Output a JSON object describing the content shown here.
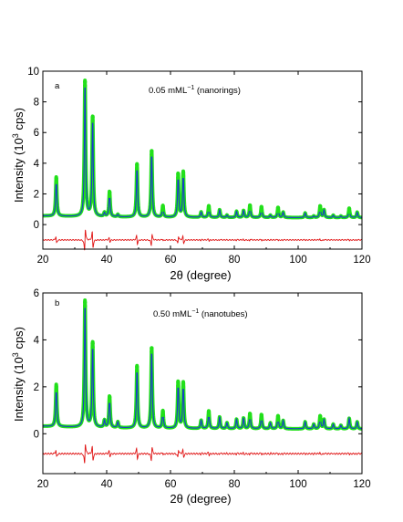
{
  "chart_data": [
    {
      "type": "line",
      "panel_label": "a",
      "annotation": "0.05 mML",
      "annotation_sup": "−1",
      "annotation_tail": " (nanorings)",
      "xlabel_pre": "2",
      "xlabel_theta": "θ",
      "xlabel_post": " (degree)",
      "ylabel_pre": "Intensity (10",
      "ylabel_sup": "3",
      "ylabel_post": " cps)",
      "xlim": [
        20,
        120
      ],
      "ylim": [
        -1.6,
        10
      ],
      "xticks": [
        20,
        40,
        60,
        80,
        100,
        120
      ],
      "yticks": [
        0,
        2,
        4,
        6,
        8,
        10
      ],
      "baseline": 0.45,
      "difference_offset": -1.0,
      "peaks": [
        {
          "x": 24.2,
          "y": 3.0
        },
        {
          "x": 33.2,
          "y": 9.3
        },
        {
          "x": 35.6,
          "y": 7.0
        },
        {
          "x": 39.3,
          "y": 0.7
        },
        {
          "x": 40.9,
          "y": 2.1
        },
        {
          "x": 43.5,
          "y": 0.6
        },
        {
          "x": 49.5,
          "y": 3.9
        },
        {
          "x": 54.1,
          "y": 4.8
        },
        {
          "x": 57.6,
          "y": 1.2
        },
        {
          "x": 62.4,
          "y": 3.3
        },
        {
          "x": 64.0,
          "y": 3.4
        },
        {
          "x": 69.6,
          "y": 0.8
        },
        {
          "x": 72.0,
          "y": 1.2
        },
        {
          "x": 75.4,
          "y": 0.95
        },
        {
          "x": 77.7,
          "y": 0.6
        },
        {
          "x": 80.7,
          "y": 0.85
        },
        {
          "x": 82.9,
          "y": 0.9
        },
        {
          "x": 84.9,
          "y": 1.25
        },
        {
          "x": 88.5,
          "y": 1.15
        },
        {
          "x": 91.3,
          "y": 0.6
        },
        {
          "x": 93.7,
          "y": 1.1
        },
        {
          "x": 95.3,
          "y": 0.8
        },
        {
          "x": 102.2,
          "y": 0.75
        },
        {
          "x": 104.9,
          "y": 0.55
        },
        {
          "x": 106.9,
          "y": 1.2
        },
        {
          "x": 108.1,
          "y": 0.95
        },
        {
          "x": 111.0,
          "y": 0.6
        },
        {
          "x": 113.4,
          "y": 0.55
        },
        {
          "x": 116.0,
          "y": 1.05
        },
        {
          "x": 118.5,
          "y": 0.8
        }
      ],
      "colors": {
        "observed": "#22e01a",
        "calculated": "#1a3acc",
        "difference": "#e01414"
      }
    },
    {
      "type": "line",
      "panel_label": "b",
      "annotation": "0.50 mML",
      "annotation_sup": "−1",
      "annotation_tail": " (nanotubes)",
      "xlabel_pre": "2",
      "xlabel_theta": "θ",
      "xlabel_post": " (degree)",
      "ylabel_pre": "Intensity (10",
      "ylabel_sup": "3",
      "ylabel_post": " cps)",
      "xlim": [
        20,
        120
      ],
      "ylim": [
        -1.7,
        6
      ],
      "xticks": [
        20,
        40,
        60,
        80,
        100,
        120
      ],
      "yticks": [
        0,
        2,
        4,
        6
      ],
      "baseline": 0.2,
      "difference_offset": -0.85,
      "peaks": [
        {
          "x": 24.2,
          "y": 2.0
        },
        {
          "x": 33.2,
          "y": 5.6
        },
        {
          "x": 35.6,
          "y": 3.85
        },
        {
          "x": 39.3,
          "y": 0.5
        },
        {
          "x": 40.9,
          "y": 1.55
        },
        {
          "x": 43.5,
          "y": 0.45
        },
        {
          "x": 49.5,
          "y": 2.85
        },
        {
          "x": 54.1,
          "y": 3.65
        },
        {
          "x": 57.6,
          "y": 0.95
        },
        {
          "x": 62.4,
          "y": 2.2
        },
        {
          "x": 64.0,
          "y": 2.15
        },
        {
          "x": 69.6,
          "y": 0.55
        },
        {
          "x": 72.0,
          "y": 0.95
        },
        {
          "x": 75.4,
          "y": 0.7
        },
        {
          "x": 77.7,
          "y": 0.45
        },
        {
          "x": 80.7,
          "y": 0.6
        },
        {
          "x": 82.9,
          "y": 0.65
        },
        {
          "x": 84.9,
          "y": 0.85
        },
        {
          "x": 88.5,
          "y": 0.8
        },
        {
          "x": 91.3,
          "y": 0.45
        },
        {
          "x": 93.7,
          "y": 0.75
        },
        {
          "x": 95.3,
          "y": 0.55
        },
        {
          "x": 102.2,
          "y": 0.5
        },
        {
          "x": 104.9,
          "y": 0.4
        },
        {
          "x": 106.9,
          "y": 0.75
        },
        {
          "x": 108.1,
          "y": 0.6
        },
        {
          "x": 111.0,
          "y": 0.4
        },
        {
          "x": 113.4,
          "y": 0.35
        },
        {
          "x": 116.0,
          "y": 0.65
        },
        {
          "x": 118.5,
          "y": 0.5
        }
      ],
      "colors": {
        "observed": "#22e01a",
        "calculated": "#1a3acc",
        "difference": "#e01414"
      }
    }
  ]
}
